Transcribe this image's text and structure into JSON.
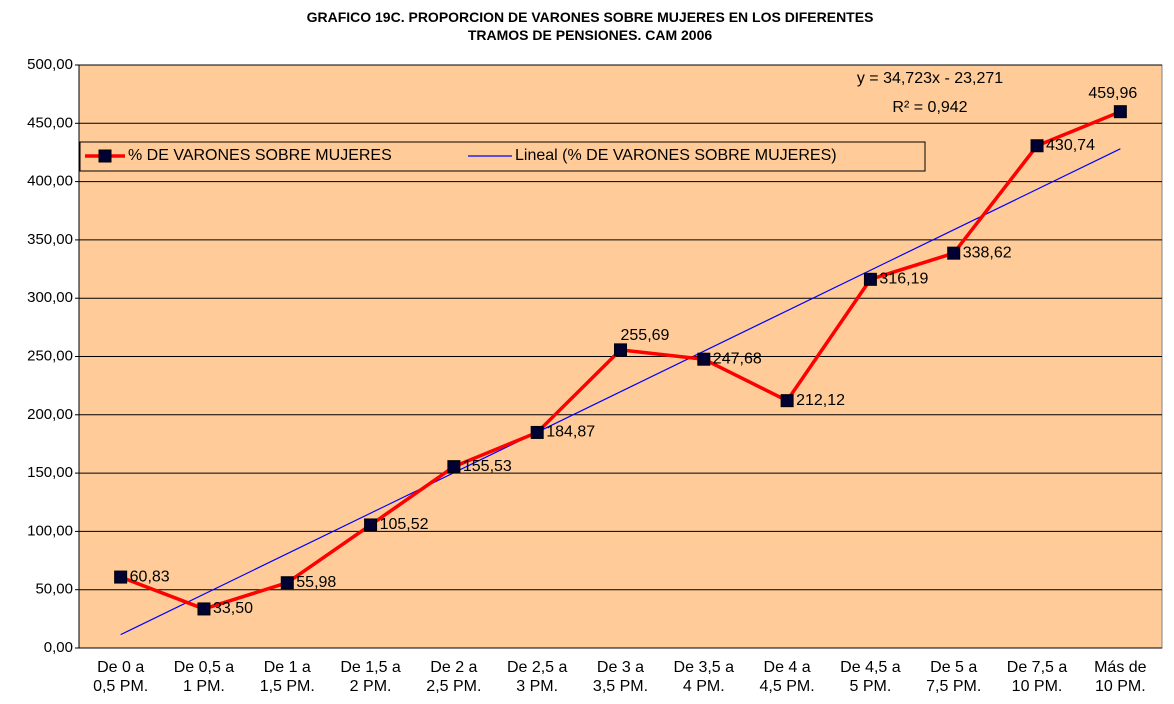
{
  "chart_data": {
    "type": "line",
    "title": "GRAFICO 19C. PROPORCION DE VARONES SOBRE MUJERES EN LOS DIFERENTES TRAMOS DE PENSIONES. CAM 2006",
    "categories": [
      "De 0 a\n0,5 PM.",
      "De 0,5 a\n1 PM.",
      "De 1 a\n1,5 PM.",
      "De 1,5 a\n2 PM.",
      "De 2 a\n2,5 PM.",
      "De 2,5 a\n3 PM.",
      "De 3 a\n3,5 PM.",
      "De 3,5 a\n4 PM.",
      "De 4 a\n4,5 PM.",
      "De 4,5 a\n5 PM.",
      "De 5 a\n7,5 PM.",
      "De 7,5 a\n10 PM.",
      "Más de\n10 PM."
    ],
    "series": [
      {
        "name": "% DE VARONES SOBRE MUJERES",
        "color": "#ff0000",
        "marker_color": "#000033",
        "values": [
          60.83,
          33.5,
          55.98,
          105.52,
          155.53,
          184.87,
          255.69,
          247.68,
          212.12,
          316.19,
          338.62,
          430.74,
          459.96
        ],
        "value_labels": [
          "60,83",
          "33,50",
          "55,98",
          "105,52",
          "155,53",
          "184,87",
          "255,69",
          "247,68",
          "212,12",
          "316,19",
          "338,62",
          "430,74",
          "459,96"
        ]
      }
    ],
    "trendline": {
      "name": "Lineal (% DE VARONES SOBRE MUJERES)",
      "color": "#0000ff",
      "slope": 34.723,
      "intercept": -23.271,
      "equation": "y = 34,723x - 23,271",
      "r_squared_label": "R² = 0,942"
    },
    "ylim": [
      0,
      500
    ],
    "yticks": [
      {
        "value": 0,
        "label": "0,00"
      },
      {
        "value": 50,
        "label": "50,00"
      },
      {
        "value": 100,
        "label": "100,00"
      },
      {
        "value": 150,
        "label": "150,00"
      },
      {
        "value": 200,
        "label": "200,00"
      },
      {
        "value": 250,
        "label": "250,00"
      },
      {
        "value": 300,
        "label": "300,00"
      },
      {
        "value": 350,
        "label": "350,00"
      },
      {
        "value": 400,
        "label": "400,00"
      },
      {
        "value": 450,
        "label": "450,00"
      },
      {
        "value": 500,
        "label": "500,00"
      }
    ],
    "grid": true,
    "legend": "left",
    "background": "#ffcc99"
  }
}
